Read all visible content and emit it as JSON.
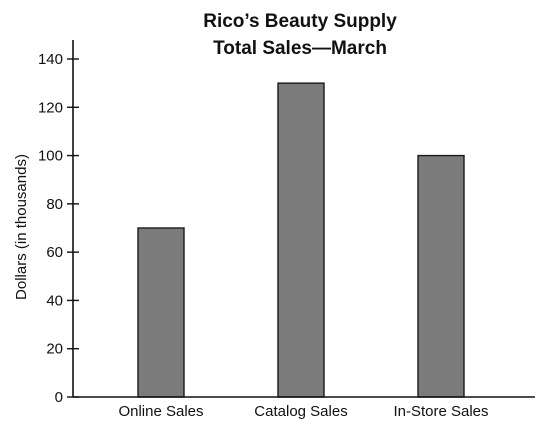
{
  "chart_data": {
    "type": "bar",
    "title": "Rico’s Beauty Supply",
    "subtitle": "Total Sales—March",
    "xlabel": "",
    "ylabel": "Dollars (in thousands)",
    "categories": [
      "Online Sales",
      "Catalog Sales",
      "In-Store Sales"
    ],
    "values": [
      70,
      130,
      100
    ],
    "ylim": [
      0,
      150
    ],
    "yticks": [
      0,
      20,
      40,
      60,
      80,
      100,
      120,
      140
    ],
    "grid": false,
    "legend": "none",
    "colors": {
      "bar_fill": "#7b7b7b",
      "bar_stroke": "#1a1a1a",
      "axis": "#111111"
    }
  }
}
